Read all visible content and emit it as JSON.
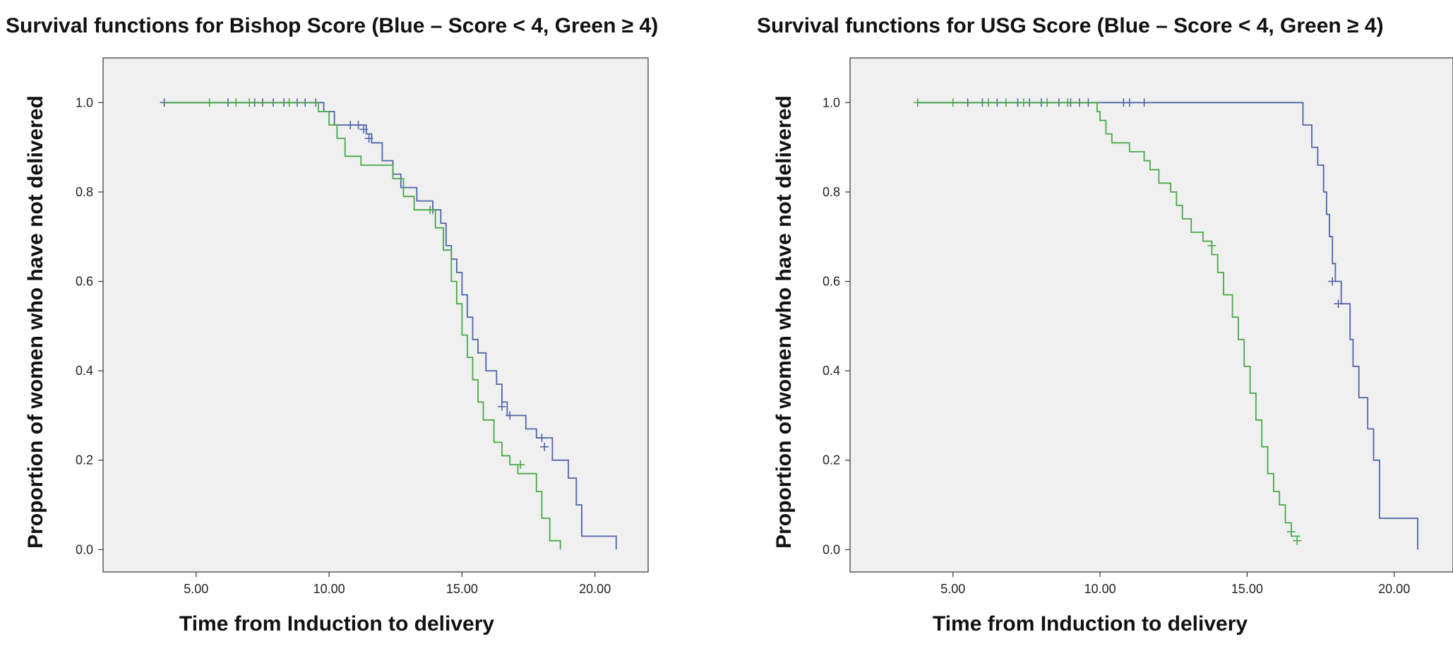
{
  "chart_data": [
    {
      "type": "line",
      "subtype": "kaplan-meier-step",
      "title": "Survival functions for Bishop Score (Blue – Score < 4, Green ≥ 4)",
      "xlabel": "Time from Induction to delivery",
      "ylabel": "Proportion of women who have not delivered",
      "xlim": [
        1.5,
        22.0
      ],
      "ylim": [
        -0.05,
        1.1
      ],
      "xticks": [
        "5.00",
        "10.00",
        "15.00",
        "20.00"
      ],
      "xtick_values": [
        5,
        10,
        15,
        20
      ],
      "yticks": [
        "0.0",
        "0.2",
        "0.4",
        "0.6",
        "0.8",
        "1.0"
      ],
      "ytick_values": [
        0,
        0.2,
        0.4,
        0.6,
        0.8,
        1.0
      ],
      "grid": false,
      "series": [
        {
          "name": "Score < 4",
          "color": "#5065a8",
          "points": [
            [
              3.8,
              1.0
            ],
            [
              9.8,
              1.0
            ],
            [
              9.8,
              0.98
            ],
            [
              10.2,
              0.98
            ],
            [
              10.2,
              0.95
            ],
            [
              11.4,
              0.95
            ],
            [
              11.4,
              0.93
            ],
            [
              11.6,
              0.93
            ],
            [
              11.6,
              0.91
            ],
            [
              12.0,
              0.91
            ],
            [
              12.0,
              0.87
            ],
            [
              12.4,
              0.87
            ],
            [
              12.4,
              0.84
            ],
            [
              12.7,
              0.84
            ],
            [
              12.7,
              0.81
            ],
            [
              13.3,
              0.81
            ],
            [
              13.3,
              0.78
            ],
            [
              13.9,
              0.78
            ],
            [
              13.9,
              0.76
            ],
            [
              14.2,
              0.76
            ],
            [
              14.2,
              0.73
            ],
            [
              14.4,
              0.73
            ],
            [
              14.4,
              0.68
            ],
            [
              14.6,
              0.68
            ],
            [
              14.6,
              0.65
            ],
            [
              14.8,
              0.65
            ],
            [
              14.8,
              0.62
            ],
            [
              15.0,
              0.62
            ],
            [
              15.0,
              0.57
            ],
            [
              15.2,
              0.57
            ],
            [
              15.2,
              0.52
            ],
            [
              15.4,
              0.52
            ],
            [
              15.4,
              0.47
            ],
            [
              15.6,
              0.47
            ],
            [
              15.6,
              0.44
            ],
            [
              15.9,
              0.44
            ],
            [
              15.9,
              0.4
            ],
            [
              16.3,
              0.4
            ],
            [
              16.3,
              0.37
            ],
            [
              16.5,
              0.37
            ],
            [
              16.5,
              0.33
            ],
            [
              16.7,
              0.33
            ],
            [
              16.7,
              0.3
            ],
            [
              17.4,
              0.3
            ],
            [
              17.4,
              0.27
            ],
            [
              17.8,
              0.27
            ],
            [
              17.8,
              0.25
            ],
            [
              18.4,
              0.25
            ],
            [
              18.4,
              0.2
            ],
            [
              19.0,
              0.2
            ],
            [
              19.0,
              0.16
            ],
            [
              19.3,
              0.16
            ],
            [
              19.3,
              0.1
            ],
            [
              19.5,
              0.1
            ],
            [
              19.5,
              0.03
            ],
            [
              20.8,
              0.03
            ],
            [
              20.8,
              0.0
            ]
          ],
          "censored": [
            [
              3.8,
              1.0
            ],
            [
              6.2,
              1.0
            ],
            [
              7.2,
              1.0
            ],
            [
              7.5,
              1.0
            ],
            [
              7.9,
              1.0
            ],
            [
              8.3,
              1.0
            ],
            [
              8.8,
              1.0
            ],
            [
              9.1,
              1.0
            ],
            [
              9.5,
              1.0
            ],
            [
              10.8,
              0.95
            ],
            [
              11.1,
              0.95
            ],
            [
              11.3,
              0.94
            ],
            [
              11.5,
              0.92
            ],
            [
              13.9,
              0.76
            ],
            [
              16.5,
              0.32
            ],
            [
              16.8,
              0.3
            ],
            [
              18.0,
              0.25
            ],
            [
              18.1,
              0.23
            ]
          ]
        },
        {
          "name": "Score ≥ 4",
          "color": "#4aa84a",
          "points": [
            [
              3.8,
              1.0
            ],
            [
              9.6,
              1.0
            ],
            [
              9.6,
              0.98
            ],
            [
              10.0,
              0.98
            ],
            [
              10.0,
              0.95
            ],
            [
              10.3,
              0.95
            ],
            [
              10.3,
              0.92
            ],
            [
              10.6,
              0.92
            ],
            [
              10.6,
              0.88
            ],
            [
              11.2,
              0.88
            ],
            [
              11.2,
              0.86
            ],
            [
              12.4,
              0.86
            ],
            [
              12.4,
              0.83
            ],
            [
              12.8,
              0.83
            ],
            [
              12.8,
              0.79
            ],
            [
              13.2,
              0.79
            ],
            [
              13.2,
              0.76
            ],
            [
              14.0,
              0.76
            ],
            [
              14.0,
              0.72
            ],
            [
              14.3,
              0.72
            ],
            [
              14.3,
              0.67
            ],
            [
              14.6,
              0.67
            ],
            [
              14.6,
              0.6
            ],
            [
              14.8,
              0.6
            ],
            [
              14.8,
              0.55
            ],
            [
              15.0,
              0.55
            ],
            [
              15.0,
              0.48
            ],
            [
              15.2,
              0.48
            ],
            [
              15.2,
              0.43
            ],
            [
              15.4,
              0.43
            ],
            [
              15.4,
              0.38
            ],
            [
              15.6,
              0.38
            ],
            [
              15.6,
              0.33
            ],
            [
              15.8,
              0.33
            ],
            [
              15.8,
              0.29
            ],
            [
              16.2,
              0.29
            ],
            [
              16.2,
              0.24
            ],
            [
              16.5,
              0.24
            ],
            [
              16.5,
              0.21
            ],
            [
              16.8,
              0.21
            ],
            [
              16.8,
              0.19
            ],
            [
              17.1,
              0.19
            ],
            [
              17.1,
              0.17
            ],
            [
              17.8,
              0.17
            ],
            [
              17.8,
              0.13
            ],
            [
              18.0,
              0.13
            ],
            [
              18.0,
              0.07
            ],
            [
              18.3,
              0.07
            ],
            [
              18.3,
              0.02
            ],
            [
              18.7,
              0.02
            ],
            [
              18.7,
              0.0
            ]
          ],
          "censored": [
            [
              5.5,
              1.0
            ],
            [
              6.5,
              1.0
            ],
            [
              7.0,
              1.0
            ],
            [
              8.5,
              1.0
            ],
            [
              13.8,
              0.76
            ],
            [
              17.2,
              0.19
            ]
          ]
        }
      ]
    },
    {
      "type": "line",
      "subtype": "kaplan-meier-step",
      "title": "Survival functions for  USG Score (Blue – Score < 4, Green ≥ 4)",
      "xlabel": "Time from Induction to delivery",
      "ylabel": "Proportion of women who have not delivered",
      "xlim": [
        1.5,
        22.0
      ],
      "ylim": [
        -0.05,
        1.1
      ],
      "xticks": [
        "5.00",
        "10.00",
        "15.00",
        "20.00"
      ],
      "xtick_values": [
        5,
        10,
        15,
        20
      ],
      "yticks": [
        "0.0",
        "0.2",
        "0.4",
        "0.6",
        "0.8",
        "1.0"
      ],
      "ytick_values": [
        0,
        0.2,
        0.4,
        0.6,
        0.8,
        1.0
      ],
      "grid": false,
      "series": [
        {
          "name": "Score < 4",
          "color": "#5065a8",
          "points": [
            [
              3.8,
              1.0
            ],
            [
              16.9,
              1.0
            ],
            [
              16.9,
              0.95
            ],
            [
              17.2,
              0.95
            ],
            [
              17.2,
              0.9
            ],
            [
              17.4,
              0.9
            ],
            [
              17.4,
              0.86
            ],
            [
              17.6,
              0.86
            ],
            [
              17.6,
              0.8
            ],
            [
              17.7,
              0.8
            ],
            [
              17.7,
              0.75
            ],
            [
              17.8,
              0.75
            ],
            [
              17.8,
              0.7
            ],
            [
              17.9,
              0.7
            ],
            [
              17.9,
              0.64
            ],
            [
              18.0,
              0.64
            ],
            [
              18.0,
              0.6
            ],
            [
              18.2,
              0.6
            ],
            [
              18.2,
              0.55
            ],
            [
              18.5,
              0.55
            ],
            [
              18.5,
              0.47
            ],
            [
              18.6,
              0.47
            ],
            [
              18.6,
              0.41
            ],
            [
              18.8,
              0.41
            ],
            [
              18.8,
              0.34
            ],
            [
              19.1,
              0.34
            ],
            [
              19.1,
              0.27
            ],
            [
              19.3,
              0.27
            ],
            [
              19.3,
              0.2
            ],
            [
              19.5,
              0.2
            ],
            [
              19.5,
              0.07
            ],
            [
              20.8,
              0.07
            ],
            [
              20.8,
              0.0
            ]
          ],
          "censored": [
            [
              5.5,
              1.0
            ],
            [
              6.0,
              1.0
            ],
            [
              6.5,
              1.0
            ],
            [
              7.2,
              1.0
            ],
            [
              7.6,
              1.0
            ],
            [
              8.0,
              1.0
            ],
            [
              8.6,
              1.0
            ],
            [
              9.0,
              1.0
            ],
            [
              9.3,
              1.0
            ],
            [
              9.6,
              1.0
            ],
            [
              10.8,
              1.0
            ],
            [
              11.0,
              1.0
            ],
            [
              11.5,
              1.0
            ],
            [
              17.9,
              0.6
            ],
            [
              18.1,
              0.55
            ]
          ]
        },
        {
          "name": "Score ≥ 4",
          "color": "#4aa84a",
          "points": [
            [
              3.8,
              1.0
            ],
            [
              9.9,
              1.0
            ],
            [
              9.9,
              0.98
            ],
            [
              10.0,
              0.98
            ],
            [
              10.0,
              0.96
            ],
            [
              10.2,
              0.96
            ],
            [
              10.2,
              0.93
            ],
            [
              10.4,
              0.93
            ],
            [
              10.4,
              0.91
            ],
            [
              11.0,
              0.91
            ],
            [
              11.0,
              0.89
            ],
            [
              11.5,
              0.89
            ],
            [
              11.5,
              0.87
            ],
            [
              11.7,
              0.87
            ],
            [
              11.7,
              0.85
            ],
            [
              12.0,
              0.85
            ],
            [
              12.0,
              0.82
            ],
            [
              12.4,
              0.82
            ],
            [
              12.4,
              0.8
            ],
            [
              12.6,
              0.8
            ],
            [
              12.6,
              0.77
            ],
            [
              12.8,
              0.77
            ],
            [
              12.8,
              0.74
            ],
            [
              13.1,
              0.74
            ],
            [
              13.1,
              0.71
            ],
            [
              13.5,
              0.71
            ],
            [
              13.5,
              0.69
            ],
            [
              13.8,
              0.69
            ],
            [
              13.8,
              0.66
            ],
            [
              14.0,
              0.66
            ],
            [
              14.0,
              0.62
            ],
            [
              14.2,
              0.62
            ],
            [
              14.2,
              0.57
            ],
            [
              14.5,
              0.57
            ],
            [
              14.5,
              0.52
            ],
            [
              14.7,
              0.52
            ],
            [
              14.7,
              0.47
            ],
            [
              14.9,
              0.47
            ],
            [
              14.9,
              0.41
            ],
            [
              15.1,
              0.41
            ],
            [
              15.1,
              0.35
            ],
            [
              15.3,
              0.35
            ],
            [
              15.3,
              0.29
            ],
            [
              15.5,
              0.29
            ],
            [
              15.5,
              0.23
            ],
            [
              15.7,
              0.23
            ],
            [
              15.7,
              0.17
            ],
            [
              15.9,
              0.17
            ],
            [
              15.9,
              0.13
            ],
            [
              16.1,
              0.13
            ],
            [
              16.1,
              0.1
            ],
            [
              16.3,
              0.1
            ],
            [
              16.3,
              0.06
            ],
            [
              16.5,
              0.06
            ],
            [
              16.5,
              0.03
            ],
            [
              16.8,
              0.03
            ]
          ],
          "censored": [
            [
              3.8,
              1.0
            ],
            [
              5.0,
              1.0
            ],
            [
              6.2,
              1.0
            ],
            [
              6.8,
              1.0
            ],
            [
              7.4,
              1.0
            ],
            [
              8.2,
              1.0
            ],
            [
              8.9,
              1.0
            ],
            [
              13.8,
              0.68
            ],
            [
              16.5,
              0.04
            ],
            [
              16.7,
              0.02
            ]
          ]
        }
      ]
    }
  ]
}
